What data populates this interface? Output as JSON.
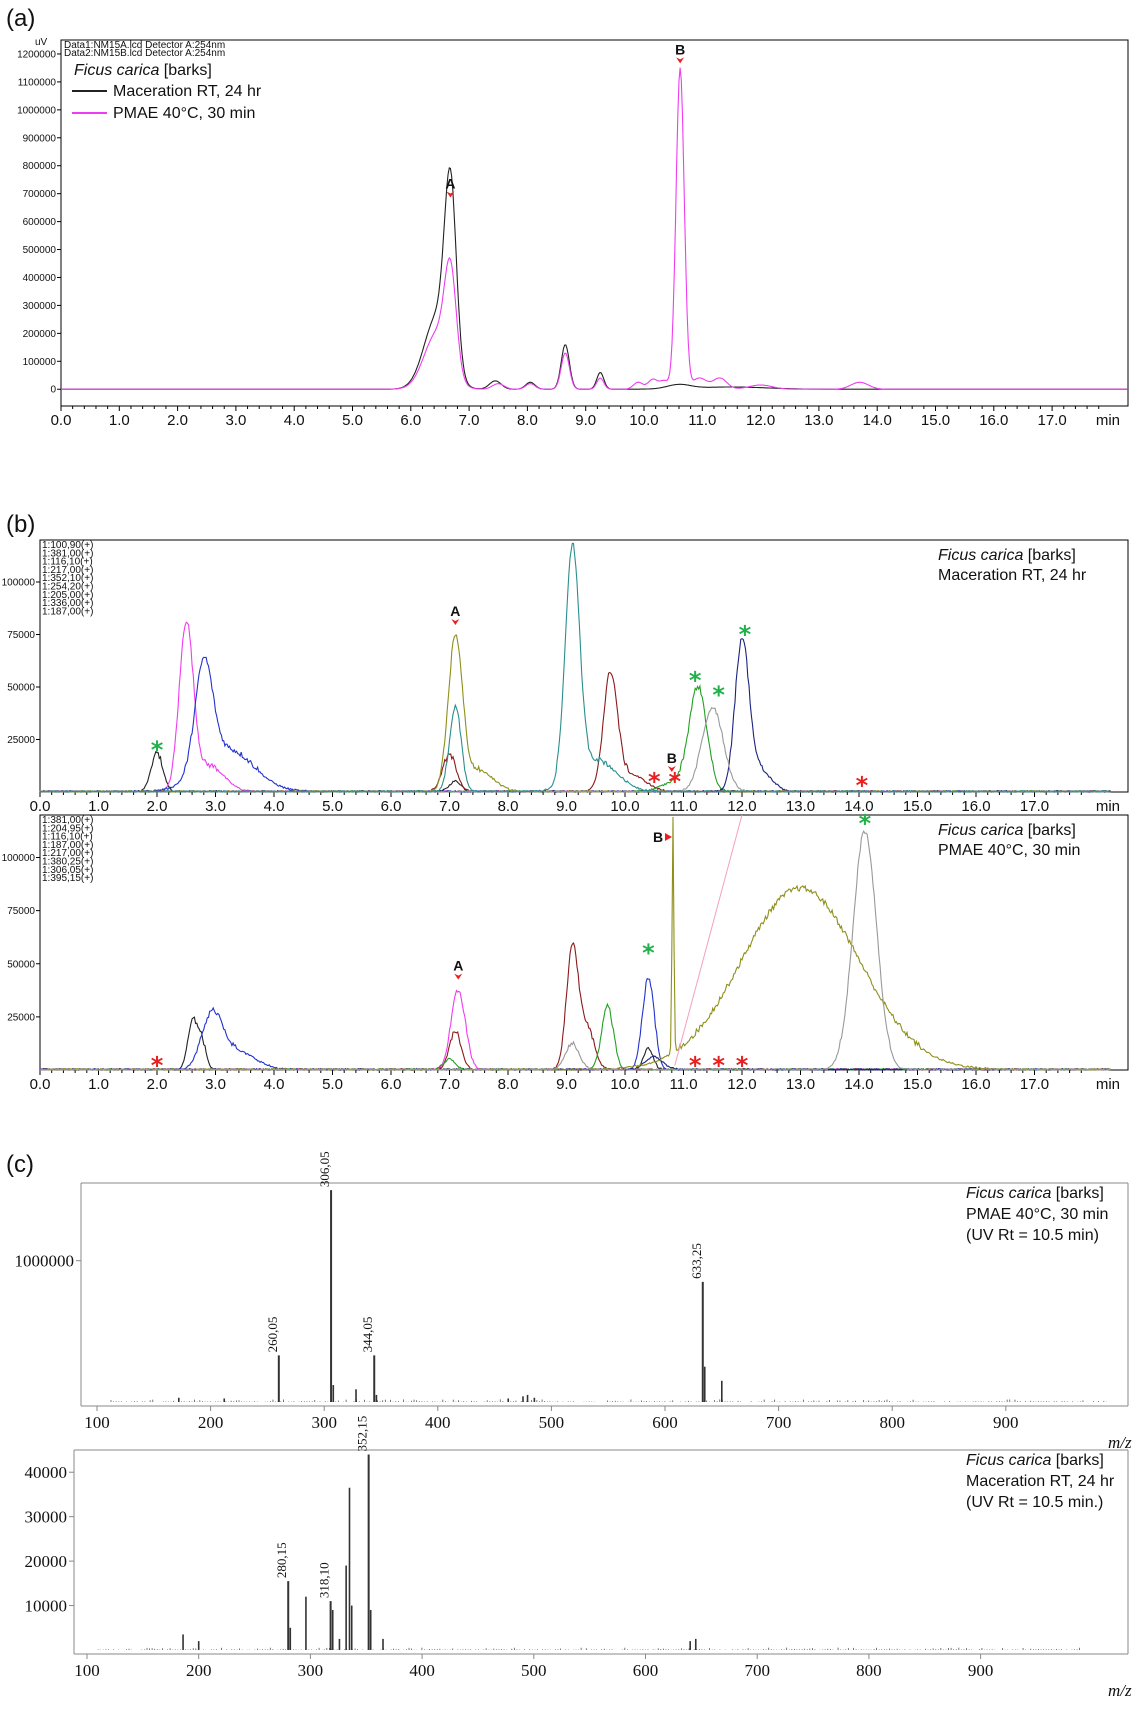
{
  "panel_labels": {
    "a": "(a)",
    "b": "(b)",
    "c": "(c)"
  },
  "colors": {
    "black": "#222222",
    "magenta": "#ee3df0",
    "blue": "#2233cc",
    "darkred": "#8b1a1a",
    "green": "#22a022",
    "navy": "#1a237e",
    "olive": "#8f8f1a",
    "gray": "#999999",
    "teal": "#2a8e8e",
    "red_marker": "#e82020",
    "green_marker": "#22b04a"
  },
  "chart_data": [
    {
      "id": "a",
      "type": "line",
      "ylabel": "uV",
      "xlabel": "min",
      "xlim": [
        0,
        18.5
      ],
      "ylim": [
        -60000,
        1250000
      ],
      "xticks": [
        "0.0",
        "1.0",
        "2.0",
        "3.0",
        "4.0",
        "5.0",
        "6.0",
        "7.0",
        "8.0",
        "9.0",
        "10.0",
        "11.0",
        "12.0",
        "13.0",
        "14.0",
        "15.0",
        "16.0",
        "17.0"
      ],
      "yticks": [
        "0",
        "100000",
        "200000",
        "300000",
        "400000",
        "500000",
        "600000",
        "700000",
        "800000",
        "900000",
        "1000000",
        "1100000",
        "1200000"
      ],
      "file_labels": [
        "Data1:NM15A.lcd Detector A:254nm",
        "Data2:NM15B.lcd Detector A:254nm"
      ],
      "legend_title_italic": "Ficus carica",
      "legend_title_rest": " [barks]",
      "legend_position": "top-left",
      "series": [
        {
          "name": "Maceration RT, 24 hr",
          "color": "#222222",
          "peaks": [
            [
              6.45,
              0.22,
              260000
            ],
            [
              6.68,
              0.1,
              640000
            ],
            [
              7.45,
              0.1,
              30000
            ],
            [
              8.05,
              0.08,
              25000
            ],
            [
              8.65,
              0.07,
              160000
            ],
            [
              9.25,
              0.06,
              60000
            ],
            [
              10.6,
              0.2,
              15000
            ],
            [
              11.5,
              0.6,
              8000
            ]
          ]
        },
        {
          "name": "PMAE 40°C, 30 min",
          "color": "#ee3df0",
          "peaks": [
            [
              6.45,
              0.22,
              200000
            ],
            [
              6.68,
              0.1,
              350000
            ],
            [
              7.5,
              0.1,
              20000
            ],
            [
              8.05,
              0.08,
              20000
            ],
            [
              8.65,
              0.07,
              130000
            ],
            [
              9.25,
              0.06,
              40000
            ],
            [
              9.9,
              0.08,
              25000
            ],
            [
              10.15,
              0.08,
              35000
            ],
            [
              10.35,
              0.08,
              30000
            ],
            [
              10.62,
              0.07,
              1150000
            ],
            [
              10.95,
              0.12,
              40000
            ],
            [
              11.3,
              0.12,
              40000
            ],
            [
              12.0,
              0.2,
              15000
            ],
            [
              13.7,
              0.15,
              25000
            ]
          ]
        }
      ],
      "annotations": [
        {
          "label": "A",
          "x": 6.68,
          "y": 690000
        },
        {
          "label": "B",
          "x": 10.62,
          "y": 1170000
        }
      ]
    },
    {
      "id": "b1",
      "type": "line",
      "xlabel": "min",
      "xlim": [
        0,
        18.5
      ],
      "ylim": [
        0,
        120000
      ],
      "xticks": [
        "0.0",
        "1.0",
        "2.0",
        "3.0",
        "4.0",
        "5.0",
        "6.0",
        "7.0",
        "8.0",
        "9.0",
        "10.0",
        "11.0",
        "12.0",
        "13.0",
        "14.0",
        "15.0",
        "16.0",
        "17.0"
      ],
      "yticks": [
        "25000",
        "50000",
        "75000",
        "100000"
      ],
      "note_italic": "Ficus carica",
      "note_rest": " [barks]",
      "note_line2": "Maceration RT, 24 hr",
      "legend_position": "top-left",
      "series": [
        {
          "name": "1:100,90(+)",
          "color": "#222222",
          "peaks": [
            [
              2.0,
              0.1,
              18000
            ],
            [
              7.1,
              0.1,
              5000
            ]
          ]
        },
        {
          "name": "1:381,00(+)",
          "color": "#ee3df0",
          "peaks": [
            [
              2.5,
              0.12,
              78000
            ],
            [
              2.9,
              0.25,
              12000
            ]
          ]
        },
        {
          "name": "1:116,10(+)",
          "color": "#2233cc",
          "peaks": [
            [
              2.8,
              0.15,
              50000
            ],
            [
              3.2,
              0.45,
              20000
            ]
          ]
        },
        {
          "name": "1:217,00(+)",
          "color": "#8b1a1a",
          "peaks": [
            [
              7.0,
              0.12,
              17000
            ],
            [
              9.75,
              0.12,
              54000
            ],
            [
              10.1,
              0.25,
              8000
            ]
          ]
        },
        {
          "name": "1:352,10(+)",
          "color": "#22a022",
          "peaks": [
            [
              11.25,
              0.15,
              48000
            ],
            [
              10.9,
              0.25,
              5000
            ]
          ]
        },
        {
          "name": "1:254,20(+)",
          "color": "#1a237e",
          "peaks": [
            [
              12.0,
              0.12,
              70000
            ],
            [
              12.3,
              0.2,
              10000
            ]
          ]
        },
        {
          "name": "1:205,00(+)",
          "color": "#8f8f1a",
          "peaks": [
            [
              7.1,
              0.12,
              72000
            ],
            [
              7.5,
              0.25,
              10000
            ]
          ]
        },
        {
          "name": "1:336,00(+)",
          "color": "#999999",
          "peaks": [
            [
              11.5,
              0.18,
              40000
            ]
          ]
        },
        {
          "name": "1:187,00(+)",
          "color": "#2a8e8e",
          "peaks": [
            [
              7.1,
              0.1,
              40000
            ],
            [
              9.1,
              0.12,
              110000
            ],
            [
              9.5,
              0.35,
              15000
            ]
          ]
        }
      ],
      "annotations": [
        {
          "label": "A",
          "x": 7.1,
          "y": 80000
        },
        {
          "label": "B",
          "x": 10.8,
          "y": 10000
        }
      ],
      "green_stars": [
        [
          2.0,
          22000
        ],
        [
          11.2,
          55000
        ],
        [
          11.6,
          48000
        ],
        [
          12.05,
          77000
        ]
      ],
      "red_stars": [
        [
          10.5,
          7000
        ],
        [
          10.85,
          7000
        ],
        [
          14.05,
          5000
        ]
      ]
    },
    {
      "id": "b2",
      "type": "line",
      "xlabel": "min",
      "xlim": [
        0,
        18.5
      ],
      "ylim": [
        0,
        120000
      ],
      "xticks": [
        "0.0",
        "1.0",
        "2.0",
        "3.0",
        "4.0",
        "5.0",
        "6.0",
        "7.0",
        "8.0",
        "9.0",
        "10.0",
        "11.0",
        "12.0",
        "13.0",
        "14.0",
        "15.0",
        "16.0",
        "17.0"
      ],
      "yticks": [
        "25000",
        "50000",
        "75000",
        "100000"
      ],
      "note_italic": "Ficus carica",
      "note_rest": " [barks]",
      "note_line2": "PMAE 40°C, 30 min",
      "legend_position": "top-left",
      "series": [
        {
          "name": "1:381,00(+)",
          "color": "#222222",
          "peaks": [
            [
              2.6,
              0.08,
              20000
            ],
            [
              2.75,
              0.08,
              14000
            ],
            [
              10.4,
              0.08,
              10000
            ]
          ]
        },
        {
          "name": "1:204,95(+)",
          "color": "#ee3df0",
          "peaks": [
            [
              7.15,
              0.12,
              37000
            ]
          ]
        },
        {
          "name": "1:116,10(+)",
          "color": "#2233cc",
          "peaks": [
            [
              2.95,
              0.18,
              25000
            ],
            [
              3.4,
              0.3,
              8000
            ],
            [
              10.4,
              0.1,
              43000
            ]
          ]
        },
        {
          "name": "1:187,00(+)",
          "color": "#8b1a1a",
          "peaks": [
            [
              7.1,
              0.1,
              18000
            ],
            [
              9.1,
              0.1,
              57000
            ],
            [
              9.35,
              0.12,
              20000
            ]
          ]
        },
        {
          "name": "1:217,00(+)",
          "color": "#22a022",
          "peaks": [
            [
              9.7,
              0.1,
              30000
            ],
            [
              7.0,
              0.1,
              5000
            ]
          ]
        },
        {
          "name": "1:380,25(+)",
          "color": "#1a237e",
          "peaks": [
            [
              10.5,
              0.15,
              6000
            ]
          ]
        },
        {
          "name": "1:306,05(+)",
          "color": "#8f8f1a",
          "peaks": [
            [
              10.82,
              0.015,
              115000
            ],
            [
              13.0,
              1.0,
              85000
            ]
          ]
        },
        {
          "name": "1:395,15(+)",
          "color": "#999999",
          "peaks": [
            [
              9.1,
              0.12,
              12000
            ],
            [
              14.1,
              0.2,
              112000
            ]
          ]
        }
      ],
      "annotations": [
        {
          "label": "A",
          "x": 7.15,
          "y": 43000
        },
        {
          "label": "B",
          "x": 10.82,
          "y": 112000
        }
      ],
      "green_stars": [
        [
          10.4,
          57000
        ],
        [
          14.1,
          118000
        ]
      ],
      "red_stars": [
        [
          2.0,
          4000
        ],
        [
          11.2,
          4000
        ],
        [
          11.6,
          4000
        ],
        [
          12.0,
          4000
        ]
      ]
    },
    {
      "id": "c1",
      "type": "bar",
      "xlabel": "m/z",
      "xlim": [
        70,
        1000
      ],
      "ylim": [
        0,
        1550000
      ],
      "xticks": [
        "100",
        "200",
        "300",
        "400",
        "500",
        "600",
        "700",
        "800",
        "900"
      ],
      "yticks": [
        "1000000"
      ],
      "note_italic": "Ficus carica",
      "note_rest": " [barks]",
      "note_line2": "PMAE 40°C, 30 min",
      "note_line3": "(UV Rt = 10.5 min)",
      "labeled_peaks": [
        {
          "x": 260.05,
          "y": 330000,
          "label": "260,05"
        },
        {
          "x": 306.05,
          "y": 1500000,
          "label": "306,05"
        },
        {
          "x": 344.05,
          "y": 330000,
          "label": "344,05"
        },
        {
          "x": 633.25,
          "y": 850000,
          "label": "633,25"
        }
      ],
      "minor_peaks": [
        [
          172,
          30000
        ],
        [
          212,
          25000
        ],
        [
          308,
          120000
        ],
        [
          328,
          90000
        ],
        [
          346,
          50000
        ],
        [
          462,
          25000
        ],
        [
          475,
          40000
        ],
        [
          479,
          50000
        ],
        [
          485,
          30000
        ],
        [
          635,
          250000
        ],
        [
          650,
          150000
        ]
      ]
    },
    {
      "id": "c2",
      "type": "bar",
      "xlabel": "m/z",
      "xlim": [
        70,
        1000
      ],
      "ylim": [
        0,
        45000
      ],
      "xticks": [
        "100",
        "200",
        "300",
        "400",
        "500",
        "600",
        "700",
        "800",
        "900"
      ],
      "yticks": [
        "10000",
        "20000",
        "30000",
        "40000"
      ],
      "note_italic": "Ficus carica",
      "note_rest": " [barks]",
      "note_line2": "Maceration RT, 24 hr",
      "note_line3": "(UV Rt = 10.5 min.)",
      "labeled_peaks": [
        {
          "x": 280.15,
          "y": 15500,
          "label": "280,15"
        },
        {
          "x": 318.1,
          "y": 11000,
          "label": "318,10"
        },
        {
          "x": 352.15,
          "y": 44000,
          "label": "352,15"
        }
      ],
      "minor_peaks": [
        [
          186,
          3500
        ],
        [
          200,
          2000
        ],
        [
          282,
          5000
        ],
        [
          296,
          12000
        ],
        [
          320,
          9000
        ],
        [
          326,
          2500
        ],
        [
          332,
          19000
        ],
        [
          335,
          36500
        ],
        [
          337,
          10000
        ],
        [
          354,
          9000
        ],
        [
          365,
          2500
        ],
        [
          640,
          2000
        ],
        [
          645,
          2500
        ]
      ]
    }
  ]
}
